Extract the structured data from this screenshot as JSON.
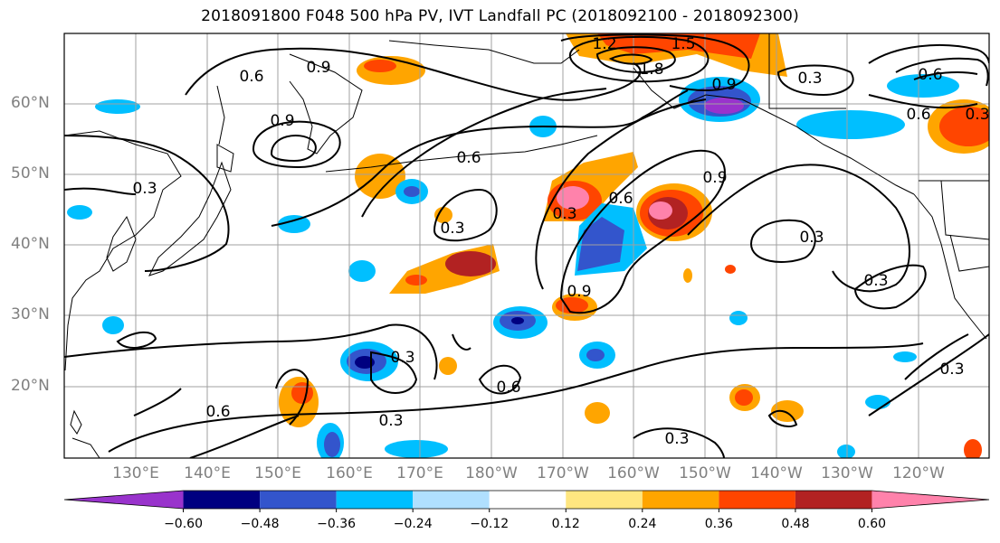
{
  "title": "2018091800 F048 500 hPa PV, IVT Landfall PC (2018092100 - 2018092300)",
  "map": {
    "lat_labels": [
      "60°N",
      "50°N",
      "40°N",
      "30°N",
      "20°N"
    ],
    "lon_labels": [
      "130°E",
      "140°E",
      "150°E",
      "160°E",
      "170°E",
      "180°W",
      "170°W",
      "160°W",
      "150°W",
      "140°W",
      "130°W",
      "120°W"
    ],
    "contour_labels": [
      "0.6",
      "0.9",
      "0.9",
      "0.3",
      "0.6",
      "0.3",
      "0.3",
      "0.3",
      "0.6",
      "0.9",
      "0.9",
      "0.3",
      "0.3",
      "0.6",
      "0.3",
      "0.3",
      "0.3",
      "0.6",
      "1.2",
      "1.5",
      "1.8",
      "0.9",
      "0.3",
      "0.6",
      "0.6",
      "0.3"
    ],
    "colors": {
      "land_outline": "#000000",
      "grid": "#a0a0a0"
    }
  },
  "colorbar": {
    "colors": [
      "#9933cc",
      "#000080",
      "#3355cc",
      "#00bfff",
      "#b0e0ff",
      "#ffffff",
      "#ffe680",
      "#ffa500",
      "#ff4500",
      "#b22222",
      "#ff82ab"
    ],
    "tick_labels": [
      "−0.60",
      "−0.48",
      "−0.36",
      "−0.24",
      "−0.12",
      "0.12",
      "0.24",
      "0.36",
      "0.48",
      "0.60"
    ]
  }
}
